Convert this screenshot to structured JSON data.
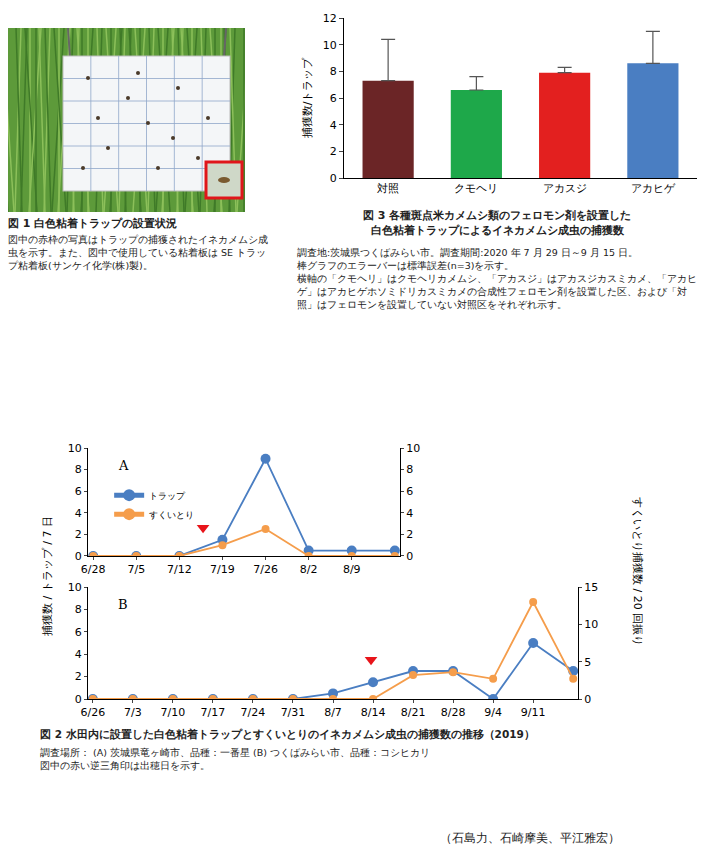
{
  "figure1": {
    "caption": "図 1 白色粘着トラップの設置状況",
    "note": "図中の赤枠の写真はトラップの捕獲されたイネカメムシ成虫を示す。また、図中で使用している粘着板は SE トラップ粘着板(サンケイ化学(株)製)。"
  },
  "figure2": {
    "caption": "図 2 水田内に設置した白色粘着トラップとすくいとりのイネカメムシ成虫の捕獲数の推移（2019）",
    "notes": [
      "調査場所： (A) 茨城県竜ヶ崎市、品種：一番星 (B) つくばみらい市、品種：コシヒカリ",
      "図中の赤い逆三角印は出穂日を示す。"
    ],
    "ylabel": "捕獲数 / トラップ / 7 日",
    "y2label": "すくいとり捕獲数 / 20 回振り"
  },
  "figure3": {
    "caption": [
      "図 3 各種斑点米カメムシ類のフェロモン剤を設置した",
      "白色粘着トラップによるイネカメムシ成虫の捕獲数"
    ],
    "notes": [
      "調査地:茨城県つくばみらい市。調査期間:2020 年 7 月 29 日～9 月 15 日。",
      "棒グラフのエラーバーは標準誤差(n=3)を示す。",
      "横軸の「クモヘリ」はクモヘリカメムシ、「アカスジ」はアカスジカスミカメ、「アカヒゲ」はアカヒゲホソミドリカスミカメの合成性フェロモン剤を設置した区、および「対照」はフェロモンを設置していない対照区をそれぞれ示す。"
    ]
  },
  "authors": "（石島力、石崎摩美、平江雅宏）",
  "chart_data": [
    {
      "type": "bar",
      "ylabel": "捕獲数/トラップ",
      "categories": [
        "対照",
        "クモヘリ",
        "アカスジ",
        "アカヒゲ"
      ],
      "values": [
        7.3,
        6.6,
        7.9,
        8.6
      ],
      "errors": [
        3.1,
        1.0,
        0.4,
        2.4
      ],
      "colors": [
        "#6b2526",
        "#1ea84a",
        "#e3201f",
        "#4a7ec2"
      ],
      "ylim": [
        0,
        12
      ],
      "yticks": [
        0,
        2,
        4,
        6,
        8,
        10,
        12
      ],
      "grid": false
    },
    {
      "type": "line",
      "title": "A",
      "categories": [
        "6/28",
        "7/5",
        "7/12",
        "7/19",
        "7/26",
        "8/2",
        "8/9",
        null
      ],
      "series": [
        {
          "name": "トラップ",
          "color": "#4a7ec2",
          "marker": "circle",
          "values": [
            0,
            0,
            0,
            1.5,
            9,
            0.5,
            0.5,
            0.5
          ]
        },
        {
          "name": "すくいとり",
          "color": "#f59d4b",
          "marker": "circle",
          "axis": "y2",
          "values": [
            0,
            0,
            0,
            1,
            2.5,
            0,
            0,
            0
          ]
        }
      ],
      "ylim": [
        0,
        10
      ],
      "yticks": [
        0,
        2,
        4,
        6,
        8,
        10
      ],
      "y2lim": [
        0,
        10
      ],
      "y2ticks": [
        0,
        2,
        4,
        6,
        8,
        10
      ],
      "legend": "upper left",
      "grid": false,
      "heading_marker": {
        "x": 2.55,
        "y": 2.6,
        "color": "#e8141a",
        "marker": "triangle-down"
      }
    },
    {
      "type": "line",
      "title": "B",
      "categories": [
        "6/26",
        "7/3",
        "7/10",
        "7/17",
        "7/24",
        "7/31",
        "8/7",
        "8/14",
        "8/21",
        "8/28",
        "9/4",
        "9/11",
        null
      ],
      "series": [
        {
          "name": "トラップ",
          "color": "#4a7ec2",
          "marker": "circle",
          "values": [
            0,
            0,
            0,
            0,
            0,
            0,
            0.5,
            1.5,
            2.5,
            2.5,
            0,
            5,
            2.5
          ]
        },
        {
          "name": "すくいとり",
          "color": "#f59d4b",
          "marker": "circle",
          "axis": "y2",
          "values": [
            0,
            0,
            0,
            0,
            0,
            0,
            0,
            0,
            3.2,
            3.6,
            2.7,
            13,
            2.7
          ]
        }
      ],
      "ylim": [
        0,
        10
      ],
      "yticks": [
        0,
        2,
        4,
        6,
        8,
        10
      ],
      "y2lim": [
        0,
        15
      ],
      "y2ticks": [
        0,
        5,
        10,
        15
      ],
      "grid": false,
      "heading_marker": {
        "x": 6.95,
        "y": 3.5,
        "color": "#e8141a",
        "marker": "triangle-down"
      }
    }
  ]
}
